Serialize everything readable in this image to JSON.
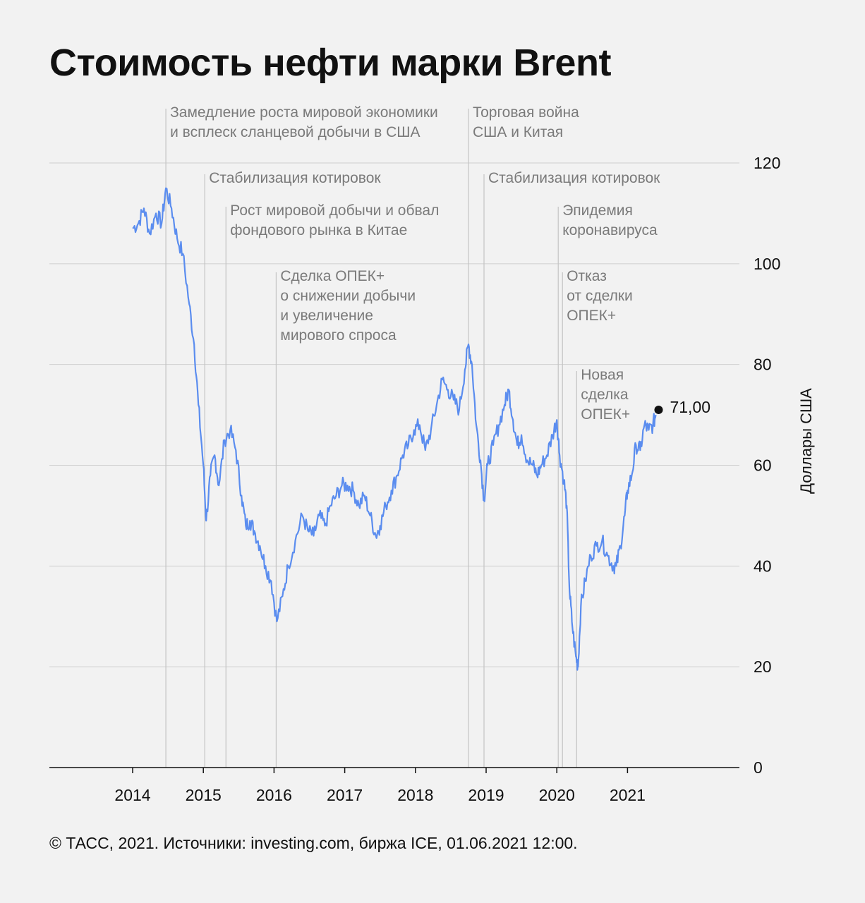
{
  "title": "Стоимость нефти марки Brent",
  "footer": "© ТАСС, 2021. Источники: investing.com, биржа ICE, 01.06.2021 12:00.",
  "colors": {
    "line": "#5b8def",
    "background": "#f2f2f2",
    "annotation": "#7a7a7a"
  },
  "chart_data": {
    "type": "line",
    "ylabel": "Доллары США",
    "ylim": [
      0,
      120
    ],
    "yticks": [
      0,
      20,
      40,
      60,
      80,
      100,
      120
    ],
    "xticks": [
      "2014",
      "2015",
      "2016",
      "2017",
      "2018",
      "2019",
      "2020",
      "2021"
    ],
    "grid": true,
    "last_value_label": "71,00",
    "series": [
      {
        "x": [
          2014.0,
          2014.08,
          2014.16,
          2014.24,
          2014.33,
          2014.41,
          2014.47,
          2014.55,
          2014.63,
          2014.71,
          2014.8,
          2014.87,
          2014.93,
          2015.0,
          2015.04,
          2015.1,
          2015.16,
          2015.22,
          2015.3,
          2015.38,
          2015.46,
          2015.54,
          2015.6,
          2015.66,
          2015.72,
          2015.8,
          2015.88,
          2015.96,
          2016.04,
          2016.12,
          2016.2,
          2016.3,
          2016.4,
          2016.48,
          2016.56,
          2016.64,
          2016.72,
          2016.8,
          2016.88,
          2016.96,
          2017.04,
          2017.12,
          2017.2,
          2017.28,
          2017.36,
          2017.44,
          2017.5,
          2017.58,
          2017.66,
          2017.74,
          2017.82,
          2017.9,
          2017.98,
          2018.06,
          2018.14,
          2018.22,
          2018.3,
          2018.38,
          2018.46,
          2018.54,
          2018.62,
          2018.7,
          2018.75,
          2018.8,
          2018.86,
          2018.92,
          2018.97,
          2019.02,
          2019.1,
          2019.18,
          2019.26,
          2019.32,
          2019.38,
          2019.44,
          2019.5,
          2019.58,
          2019.66,
          2019.72,
          2019.78,
          2019.86,
          2019.94,
          2020.0,
          2020.04,
          2020.1,
          2020.14,
          2020.18,
          2020.22,
          2020.27,
          2020.3,
          2020.34,
          2020.4,
          2020.48,
          2020.56,
          2020.64,
          2020.72,
          2020.8,
          2020.84,
          2020.9,
          2020.96,
          2021.0,
          2021.06,
          2021.12,
          2021.18,
          2021.24,
          2021.3,
          2021.36,
          2021.4
        ],
        "values": [
          107,
          108,
          111,
          106,
          110,
          108,
          115,
          111,
          105,
          102,
          92,
          84,
          72,
          60,
          49,
          58,
          62,
          56,
          65,
          67,
          63,
          54,
          48,
          49,
          47,
          44,
          40,
          37,
          29,
          34,
          40,
          45,
          50,
          47,
          46,
          50,
          48,
          52,
          54,
          56,
          56,
          55,
          52,
          54,
          50,
          46,
          48,
          52,
          55,
          58,
          62,
          64,
          67,
          68,
          63,
          67,
          72,
          77,
          75,
          73,
          71,
          79,
          84,
          80,
          68,
          61,
          53,
          60,
          64,
          68,
          72,
          75,
          69,
          64,
          66,
          61,
          60,
          58,
          60,
          62,
          66,
          69,
          62,
          57,
          52,
          35,
          28,
          22,
          20,
          32,
          37,
          42,
          44,
          45,
          42,
          40,
          40,
          44,
          50,
          55,
          58,
          64,
          63,
          68,
          67,
          68,
          70
        ]
      }
    ],
    "annotations": [
      {
        "x": 2014.47,
        "lines": [
          "Замедление роста мировой экономики",
          "и всплеск сланцевой добычи в США"
        ]
      },
      {
        "x": 2015.02,
        "lines": [
          "Стабилизация котировок"
        ]
      },
      {
        "x": 2015.32,
        "lines": [
          "Рост мировой добычи и обвал",
          "фондового рынка в Китае"
        ]
      },
      {
        "x": 2016.03,
        "lines": [
          "Сделка ОПЕК+",
          "о снижении добычи",
          "и увеличение",
          "мирового спроса"
        ]
      },
      {
        "x": 2018.75,
        "lines": [
          "Торговая война",
          "США и Китая"
        ]
      },
      {
        "x": 2018.97,
        "lines": [
          "Стабилизация котировок"
        ]
      },
      {
        "x": 2020.02,
        "lines": [
          "Эпидемия",
          "коронавируса"
        ]
      },
      {
        "x": 2020.08,
        "lines": [
          "Отказ",
          "от сделки",
          "ОПЕК+"
        ]
      },
      {
        "x": 2020.28,
        "lines": [
          "Новая",
          "сделка",
          "ОПЕК+"
        ]
      }
    ]
  }
}
